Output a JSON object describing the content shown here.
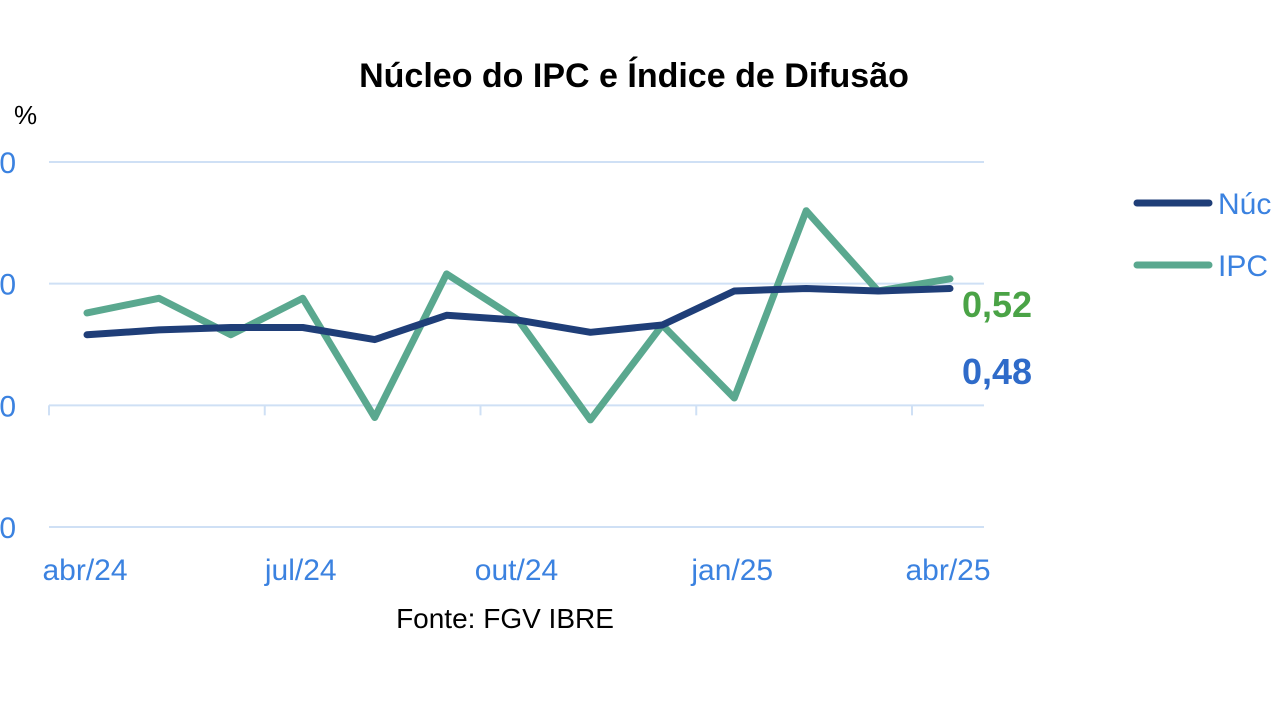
{
  "chart_data": {
    "type": "line",
    "title": "Núcleo do IPC e Índice de Difusão",
    "unit_label": "%",
    "x": [
      "abr/24",
      "mai/24",
      "jun/24",
      "jul/24",
      "ago/24",
      "set/24",
      "out/24",
      "nov/24",
      "dez/24",
      "jan/25",
      "fev/25",
      "mar/25",
      "abr/25"
    ],
    "x_tick_labels": [
      "abr/24",
      "jul/24",
      "out/24",
      "jan/25",
      "abr/25"
    ],
    "y_tick_labels": [
      "0",
      "0",
      "0",
      "0"
    ],
    "ylim": [
      -0.5,
      1.0
    ],
    "grid": true,
    "legend_position": "right",
    "series": [
      {
        "name": "Núc",
        "color": "#1f3e78",
        "values": [
          0.29,
          0.31,
          0.32,
          0.32,
          0.27,
          0.37,
          0.35,
          0.3,
          0.33,
          0.47,
          0.48,
          0.47,
          0.48
        ],
        "end_label": "0,48",
        "end_label_color": "#2f6bc9"
      },
      {
        "name": "IPC",
        "color": "#5aa88f",
        "values": [
          0.38,
          0.44,
          0.29,
          0.44,
          -0.05,
          0.54,
          0.35,
          -0.06,
          0.33,
          0.03,
          0.8,
          0.47,
          0.52
        ],
        "end_label": "0,52",
        "end_label_color": "#4aa346"
      }
    ]
  },
  "source": "Fonte: FGV IBRE"
}
